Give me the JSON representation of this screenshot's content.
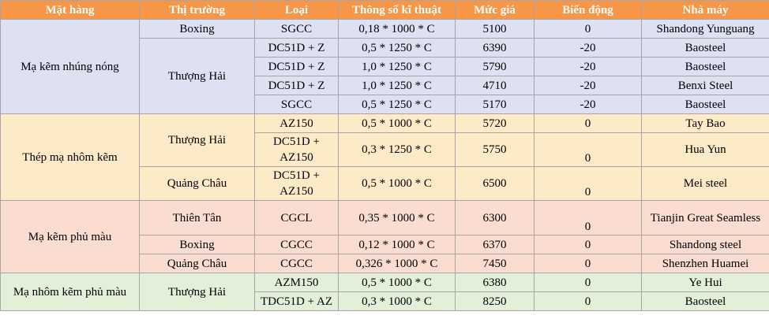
{
  "header": [
    "Mặt hàng",
    "Thị trường",
    "Loại",
    "Thông số kĩ thuật",
    "Mức giá",
    "Biến động",
    "Nhà máy"
  ],
  "groups": [
    {
      "product": "Mạ kẽm nhúng nóng",
      "markets": [
        {
          "name": "Boxing",
          "rows": [
            {
              "type": "SGCC",
              "spec": "0,18 * 1000 * C",
              "price": 5100,
              "change": 0,
              "factory": "Shandong Yunguang"
            }
          ]
        },
        {
          "name": "Thượng Hải",
          "rows": [
            {
              "type": "DC51D + Z",
              "spec": "0,5 * 1250 * C",
              "price": 6390,
              "change": -20,
              "factory": "Baosteel"
            },
            {
              "type": "DC51D + Z",
              "spec": "1,0 * 1250 * C",
              "price": 5790,
              "change": -20,
              "factory": "Baosteel"
            },
            {
              "type": "DC51D + Z",
              "spec": "1,0 * 1250 * C",
              "price": 4710,
              "change": -20,
              "factory": "Benxi Steel"
            },
            {
              "type": "SGCC",
              "spec": "0,5 * 1250 * C",
              "price": 5170,
              "change": -20,
              "factory": "Baosteel"
            }
          ]
        }
      ]
    },
    {
      "product": "Thép mạ nhôm kẽm",
      "markets": [
        {
          "name": "Thượng Hải",
          "rows": [
            {
              "type": "AZ150",
              "spec": "0,5 * 1000 * C",
              "price": 5720,
              "change": 0,
              "factory": "Tay Bao"
            },
            {
              "type": "DC51D + AZ150",
              "spec": "0,3 * 1250 * C",
              "price": 5750,
              "change": 0,
              "factory": "Hua Yun"
            }
          ]
        },
        {
          "name": "Quảng Châu",
          "rows": [
            {
              "type": "DC51D + AZ150",
              "spec": "0,5 * 1000 * C",
              "price": 6500,
              "change": 0,
              "factory": "Mei steel"
            }
          ]
        }
      ]
    },
    {
      "product": "Mạ kẽm phủ màu",
      "markets": [
        {
          "name": "Thiên Tân",
          "rows": [
            {
              "type": "CGCL",
              "spec": "0,35 * 1000 * C",
              "price": 6300,
              "change": 0,
              "factory": "Tianjin Great Seamless"
            }
          ]
        },
        {
          "name": "Boxing",
          "rows": [
            {
              "type": "CGCC",
              "spec": "0,12 * 1000 * C",
              "price": 6370,
              "change": 0,
              "factory": "Shandong steel"
            }
          ]
        },
        {
          "name": "Quảng Châu",
          "rows": [
            {
              "type": "CGCC",
              "spec": "0,326 * 1000 * C",
              "price": 7450,
              "change": 0,
              "factory": "Shenzhen Huamei"
            }
          ]
        }
      ]
    },
    {
      "product": "Mạ nhôm kẽm phủ màu",
      "markets": [
        {
          "name": "Thượng Hải",
          "rows": [
            {
              "type": "AZM150",
              "spec": "0,5 * 1000 * C",
              "price": 6380,
              "change": 0,
              "factory": "Ye Hui"
            },
            {
              "type": "TDC51D + AZ",
              "spec": "0,3 * 1000 * C",
              "price": 8250,
              "change": 0,
              "factory": "Baosteel"
            }
          ]
        }
      ]
    }
  ]
}
